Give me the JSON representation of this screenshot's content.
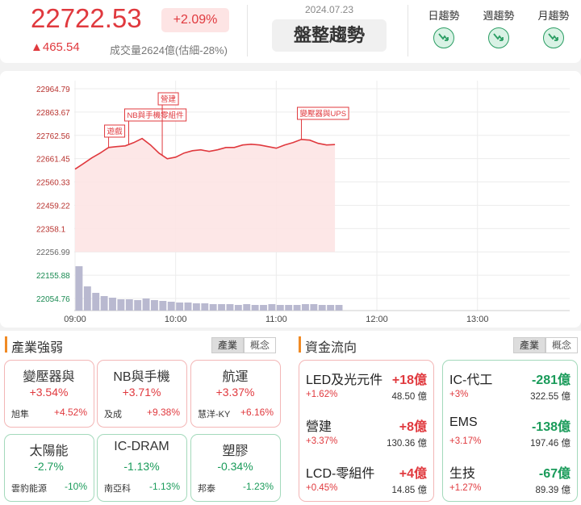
{
  "header": {
    "price": 22722.53,
    "change_pct": "+2.09%",
    "change": {
      "value": 465.54,
      "label": "▲465.54"
    },
    "volume": "成交量2624億(估細-28%)",
    "date": "2024.07.23",
    "trend": "盤整趨勢",
    "trends": [
      "日趨勢",
      "週趨勢",
      "月趨勢"
    ]
  },
  "chart_data": {
    "type": "line",
    "color": "#e0393e",
    "x": [
      "09:00",
      "09:05",
      "09:10",
      "09:15",
      "09:20",
      "09:25",
      "09:30",
      "09:35",
      "09:40",
      "09:45",
      "09:50",
      "09:55",
      "10:00",
      "10:05",
      "10:10",
      "10:15",
      "10:20",
      "10:25",
      "10:30",
      "10:35",
      "10:40",
      "10:45",
      "10:50",
      "10:55",
      "11:00",
      "11:05",
      "11:10",
      "11:15",
      "11:20",
      "11:25",
      "11:30",
      "11:35"
    ],
    "values": [
      22616,
      22640,
      22665,
      22686,
      22710,
      22714,
      22717,
      22731,
      22749,
      22721,
      22686,
      22661,
      22668,
      22686,
      22696,
      22700,
      22693,
      22700,
      22710,
      22710,
      22721,
      22724,
      22721,
      22714,
      22707,
      22721,
      22731,
      22745,
      22742,
      22728,
      22721,
      22722.53
    ],
    "volume": [
      55,
      30,
      22,
      18,
      16,
      14,
      14,
      13,
      15,
      13,
      12,
      11,
      10,
      10,
      9,
      9,
      8,
      8,
      8,
      7,
      8,
      7,
      7,
      8,
      7,
      7,
      7,
      8,
      8,
      7,
      7,
      7
    ],
    "ylim": [
      22054.76,
      22964.79
    ],
    "yticks": [
      22964.79,
      22863.67,
      22762.56,
      22661.45,
      22560.33,
      22459.22,
      22358.1,
      {
        "value": 22256.99,
        "label": "22256.99"
      },
      22155.88,
      22054.76
    ],
    "xlim": [
      "09:00",
      "13:55"
    ],
    "xticks": [
      "09:00",
      "10:00",
      "11:00",
      "12:00",
      "13:00"
    ],
    "annotations": [
      {
        "text": "遊戲",
        "x": "09:20"
      },
      {
        "text": "NB與手機零組件",
        "x": "09:32"
      },
      {
        "text": "營建",
        "x": "09:52"
      },
      {
        "text": "變壓器與UPS",
        "x": "11:15"
      }
    ],
    "grid": true
  },
  "industry": {
    "title": "產業強弱",
    "tabs": [
      "產業",
      "概念"
    ],
    "cards": [
      {
        "name": "變壓器與",
        "change": "+3.54%",
        "stock": "旭隼",
        "stock_change": "+4.52%",
        "trend": "up"
      },
      {
        "name": "NB與手機",
        "change": "+3.71%",
        "stock": "及成",
        "stock_change": "+9.38%",
        "trend": "up"
      },
      {
        "name": "航運",
        "change": "+3.37%",
        "stock": "慧洋-KY",
        "stock_change": "+6.16%",
        "trend": "up"
      },
      {
        "name": "太陽能",
        "change": "-2.7%",
        "stock": "雲豹能源",
        "stock_change": "-10%",
        "trend": "down"
      },
      {
        "name": "IC-DRAM",
        "change": "-1.13%",
        "stock": "南亞科",
        "stock_change": "-1.13%",
        "trend": "down"
      },
      {
        "name": "塑膠",
        "change": "-0.34%",
        "stock": "邦泰",
        "stock_change": "-1.23%",
        "trend": "down"
      }
    ]
  },
  "funds": {
    "title": "資金流向",
    "tabs": [
      "產業",
      "概念"
    ],
    "groups": [
      {
        "trend": "up",
        "items": [
          {
            "name": "LED及光元件",
            "amount": "+18億",
            "change": "+1.62%",
            "turnover": "48.50 億"
          },
          {
            "name": "營建",
            "amount": "+8億",
            "change": "+3.37%",
            "turnover": "130.36 億"
          },
          {
            "name": "LCD-零組件",
            "amount": "+4億",
            "change": "+0.45%",
            "turnover": "14.85 億"
          }
        ]
      },
      {
        "trend": "down",
        "items": [
          {
            "name": "IC-代工",
            "amount": "-281億",
            "change": "+3%",
            "turnover": "322.55 億"
          },
          {
            "name": "EMS",
            "amount": "-138億",
            "change": "+3.17%",
            "turnover": "197.46 億"
          },
          {
            "name": "生技",
            "amount": "-67億",
            "change": "+1.27%",
            "turnover": "89.39 億"
          }
        ]
      }
    ]
  }
}
